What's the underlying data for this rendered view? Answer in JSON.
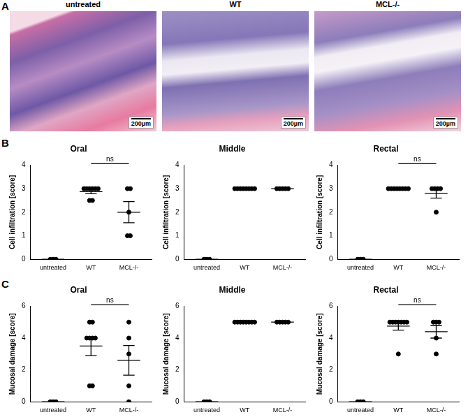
{
  "panel_labels": [
    "A",
    "B",
    "C"
  ],
  "images": [
    {
      "title": "untreated",
      "scale_bar": "200µm"
    },
    {
      "title": "WT",
      "scale_bar": "200µm"
    },
    {
      "title": "MCL-/-",
      "scale_bar": "200µm"
    }
  ],
  "chart_data": [
    {
      "type": "scatter",
      "title": "Oral",
      "y_label": "Cell infiltration [score]",
      "categories": [
        "untreated",
        "WT",
        "MCL-/-"
      ],
      "values": [
        [
          0,
          0,
          0
        ],
        [
          3,
          3,
          3,
          3,
          3,
          3,
          2.5,
          2.5
        ],
        [
          3,
          3,
          2,
          1,
          1
        ]
      ],
      "mean": [
        0,
        2.875,
        2
      ],
      "sem": [
        0,
        0.09,
        0.45
      ],
      "color": "#000000",
      "marker": "circle",
      "ylim": [
        0,
        4
      ],
      "yticks": [
        0,
        1,
        2,
        3,
        4
      ],
      "grid": false,
      "significance": [
        {
          "between": [
            "WT",
            "MCL-/-"
          ],
          "label": "ns"
        }
      ]
    },
    {
      "type": "scatter",
      "title": "Middle",
      "y_label": "Cell infiltration [score]",
      "categories": [
        "untreated",
        "WT",
        "MCL-/-"
      ],
      "values": [
        [
          0,
          0,
          0
        ],
        [
          3,
          3,
          3,
          3,
          3,
          3,
          3,
          3
        ],
        [
          3,
          3,
          3,
          3,
          3
        ]
      ],
      "mean": [
        0,
        3,
        3
      ],
      "sem": [
        0,
        0,
        0
      ],
      "color": "#000000",
      "marker": "circle",
      "ylim": [
        0,
        4
      ],
      "yticks": [
        0,
        1,
        2,
        3,
        4
      ],
      "grid": false
    },
    {
      "type": "scatter",
      "title": "Rectal",
      "y_label": "Cell infiltration [score]",
      "categories": [
        "untreated",
        "WT",
        "MCL-/-"
      ],
      "values": [
        [
          0,
          0,
          0
        ],
        [
          3,
          3,
          3,
          3,
          3,
          3,
          3,
          3
        ],
        [
          3,
          3,
          3,
          3,
          2
        ]
      ],
      "mean": [
        0,
        3,
        2.8
      ],
      "sem": [
        0,
        0,
        0.2
      ],
      "color": "#000000",
      "marker": "circle",
      "ylim": [
        0,
        4
      ],
      "yticks": [
        0,
        1,
        2,
        3,
        4
      ],
      "grid": false,
      "significance": [
        {
          "between": [
            "WT",
            "MCL-/-"
          ],
          "label": "ns"
        }
      ]
    },
    {
      "type": "scatter",
      "title": "Oral",
      "y_label": "Mucosal damage [score]",
      "categories": [
        "untreated",
        "WT",
        "MCL-/-"
      ],
      "values": [
        [
          0,
          0,
          0
        ],
        [
          5,
          5,
          4,
          4,
          4,
          4,
          1,
          1
        ],
        [
          5,
          4,
          3,
          1,
          0
        ]
      ],
      "mean": [
        0,
        3.5,
        2.6
      ],
      "sem": [
        0,
        0.6,
        0.93
      ],
      "color": "#000000",
      "marker": "circle",
      "ylim": [
        0,
        6
      ],
      "yticks": [
        0,
        2,
        4,
        6
      ],
      "grid": false,
      "significance": [
        {
          "between": [
            "WT",
            "MCL-/-"
          ],
          "label": "ns"
        }
      ]
    },
    {
      "type": "scatter",
      "title": "Middle",
      "y_label": "Mucosal damage [score]",
      "categories": [
        "untreated",
        "WT",
        "MCL-/-"
      ],
      "values": [
        [
          0,
          0,
          0
        ],
        [
          5,
          5,
          5,
          5,
          5,
          5,
          5,
          5
        ],
        [
          5,
          5,
          5,
          5,
          5
        ]
      ],
      "mean": [
        0,
        5,
        5
      ],
      "sem": [
        0,
        0,
        0
      ],
      "color": "#000000",
      "marker": "circle",
      "ylim": [
        0,
        6
      ],
      "yticks": [
        0,
        2,
        4,
        6
      ],
      "grid": false
    },
    {
      "type": "scatter",
      "title": "Rectal",
      "y_label": "Mucosal damage [score]",
      "categories": [
        "untreated",
        "WT",
        "MCL-/-"
      ],
      "values": [
        [
          0,
          0,
          0
        ],
        [
          5,
          5,
          5,
          5,
          5,
          5,
          5,
          3
        ],
        [
          5,
          5,
          5,
          4,
          3
        ]
      ],
      "mean": [
        0,
        4.75,
        4.4
      ],
      "sem": [
        0,
        0.25,
        0.4
      ],
      "color": "#000000",
      "marker": "circle",
      "ylim": [
        0,
        6
      ],
      "yticks": [
        0,
        2,
        4,
        6
      ],
      "grid": false,
      "significance": [
        {
          "between": [
            "WT",
            "MCL-/-"
          ],
          "label": "ns"
        }
      ]
    }
  ]
}
